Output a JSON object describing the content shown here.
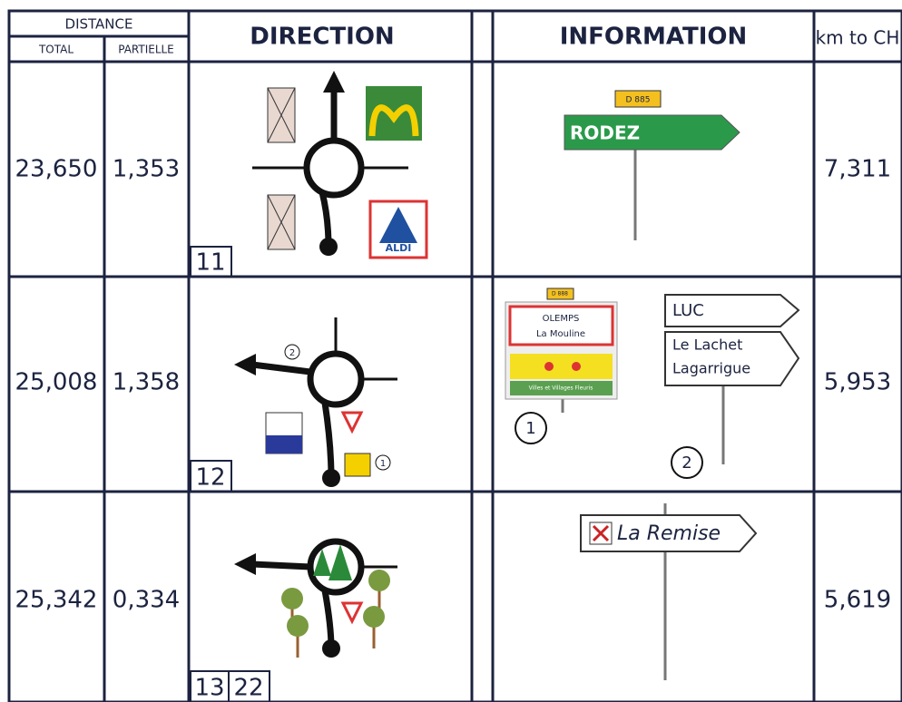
{
  "header": {
    "distance": "DISTANCE",
    "total": "TOTAL",
    "partial": "PARTIELLE",
    "direction": "DIRECTION",
    "information": "INFORMATION",
    "km": "km to CH"
  },
  "rows": [
    {
      "total": "23,650",
      "partial": "1,353",
      "boxes": [
        "11"
      ],
      "logos": [
        "ALDI"
      ],
      "signs": {
        "road": "D 885",
        "name": "RODEZ"
      },
      "km": "7,311"
    },
    {
      "total": "25,008",
      "partial": "1,358",
      "boxes": [
        "12"
      ],
      "markers": [
        "2",
        "1"
      ],
      "signs": {
        "road": "D 888",
        "town": "OLEMPS",
        "place": "La Mouline",
        "label": "Villes et Villages Fleuris",
        "dir1": "LUC",
        "dir2a": "Le Lachet",
        "dir2b": "Lagarrigue",
        "marker1": "1",
        "marker2": "2"
      },
      "km": "5,953"
    },
    {
      "total": "25,342",
      "partial": "0,334",
      "boxes": [
        "13",
        "22"
      ],
      "signs": {
        "name": "La Remise"
      },
      "km": "5,619"
    }
  ]
}
